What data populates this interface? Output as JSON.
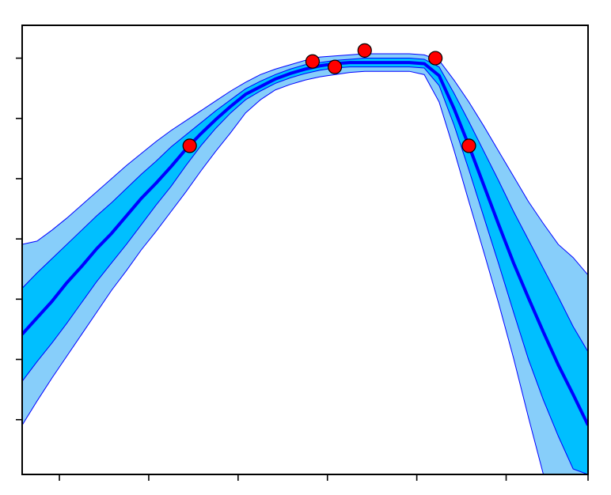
{
  "colors": {
    "outer_band": "#87CEFA",
    "inner_band": "#00BFFF",
    "mean_line": "#0000FF",
    "band_edge": "#0000FF",
    "observation_fill": "#FF0000",
    "observation_edge": "#000000",
    "axes": "#000000",
    "background": "#FFFFFF"
  },
  "chart_data": {
    "type": "area",
    "title": "",
    "xlabel": "",
    "ylabel": "",
    "xlim": [
      0,
      7.6
    ],
    "ylim": [
      -1.5,
      2.6
    ],
    "x_ticks": [
      0.5,
      1.7,
      2.9,
      4.1,
      5.3,
      6.5,
      7.6
    ],
    "y_ticks": [
      -1.0,
      -0.45,
      0.1,
      0.65,
      1.2,
      1.75,
      2.3
    ],
    "grid": false,
    "legend": "none",
    "x": [
      0.0,
      0.2,
      0.4,
      0.6,
      0.8,
      1.0,
      1.2,
      1.4,
      1.6,
      1.8,
      2.0,
      2.2,
      2.4,
      2.6,
      2.8,
      3.0,
      3.2,
      3.4,
      3.6,
      3.8,
      4.0,
      4.2,
      4.4,
      4.6,
      4.8,
      5.0,
      5.2,
      5.4,
      5.6,
      5.8,
      6.0,
      6.2,
      6.4,
      6.6,
      6.8,
      7.0,
      7.2,
      7.4,
      7.6
    ],
    "series": [
      {
        "role": "mean",
        "values": [
          -0.22,
          -0.07,
          0.08,
          0.25,
          0.4,
          0.56,
          0.7,
          0.86,
          1.02,
          1.16,
          1.31,
          1.47,
          1.61,
          1.74,
          1.86,
          1.97,
          2.04,
          2.11,
          2.16,
          2.2,
          2.23,
          2.25,
          2.26,
          2.26,
          2.26,
          2.26,
          2.26,
          2.25,
          2.14,
          1.84,
          1.5,
          1.14,
          0.78,
          0.43,
          0.11,
          -0.2,
          -0.5,
          -0.77,
          -1.05
        ]
      },
      {
        "role": "inner-band-upper",
        "values": [
          0.2,
          0.34,
          0.47,
          0.6,
          0.73,
          0.86,
          0.98,
          1.11,
          1.24,
          1.36,
          1.49,
          1.6,
          1.71,
          1.82,
          1.92,
          2.02,
          2.09,
          2.15,
          2.2,
          2.24,
          2.26,
          2.28,
          2.29,
          2.3,
          2.3,
          2.3,
          2.3,
          2.29,
          2.22,
          1.98,
          1.72,
          1.45,
          1.18,
          0.9,
          0.64,
          0.38,
          0.12,
          -0.15,
          -0.38
        ]
      },
      {
        "role": "inner-band-lower",
        "values": [
          -0.65,
          -0.47,
          -0.3,
          -0.12,
          0.07,
          0.26,
          0.43,
          0.6,
          0.78,
          0.96,
          1.13,
          1.32,
          1.5,
          1.66,
          1.8,
          1.92,
          2.0,
          2.07,
          2.12,
          2.16,
          2.19,
          2.21,
          2.22,
          2.22,
          2.22,
          2.22,
          2.22,
          2.21,
          2.05,
          1.69,
          1.28,
          0.85,
          0.42,
          -0.02,
          -0.45,
          -0.82,
          -1.15,
          -1.45,
          -1.5
        ]
      },
      {
        "role": "outer-band-upper",
        "values": [
          0.6,
          0.63,
          0.73,
          0.84,
          0.96,
          1.08,
          1.2,
          1.32,
          1.43,
          1.54,
          1.64,
          1.73,
          1.82,
          1.91,
          2.0,
          2.08,
          2.15,
          2.2,
          2.24,
          2.28,
          2.31,
          2.32,
          2.33,
          2.34,
          2.34,
          2.34,
          2.34,
          2.33,
          2.28,
          2.1,
          1.9,
          1.68,
          1.45,
          1.22,
          0.99,
          0.79,
          0.6,
          0.48,
          0.32
        ]
      },
      {
        "role": "outer-band-lower",
        "values": [
          -1.05,
          -0.83,
          -0.62,
          -0.42,
          -0.22,
          -0.02,
          0.18,
          0.36,
          0.55,
          0.72,
          0.9,
          1.08,
          1.27,
          1.45,
          1.62,
          1.8,
          1.92,
          2.01,
          2.06,
          2.1,
          2.13,
          2.15,
          2.17,
          2.18,
          2.18,
          2.18,
          2.18,
          2.15,
          1.9,
          1.46,
          0.99,
          0.53,
          0.06,
          -0.44,
          -0.98,
          -1.5,
          -1.5,
          -1.5,
          -1.5
        ]
      }
    ],
    "observations": [
      {
        "x": 2.25,
        "y": 1.5
      },
      {
        "x": 3.9,
        "y": 2.27
      },
      {
        "x": 4.2,
        "y": 2.22
      },
      {
        "x": 4.6,
        "y": 2.37
      },
      {
        "x": 5.55,
        "y": 2.3
      },
      {
        "x": 6.0,
        "y": 1.5
      }
    ]
  }
}
